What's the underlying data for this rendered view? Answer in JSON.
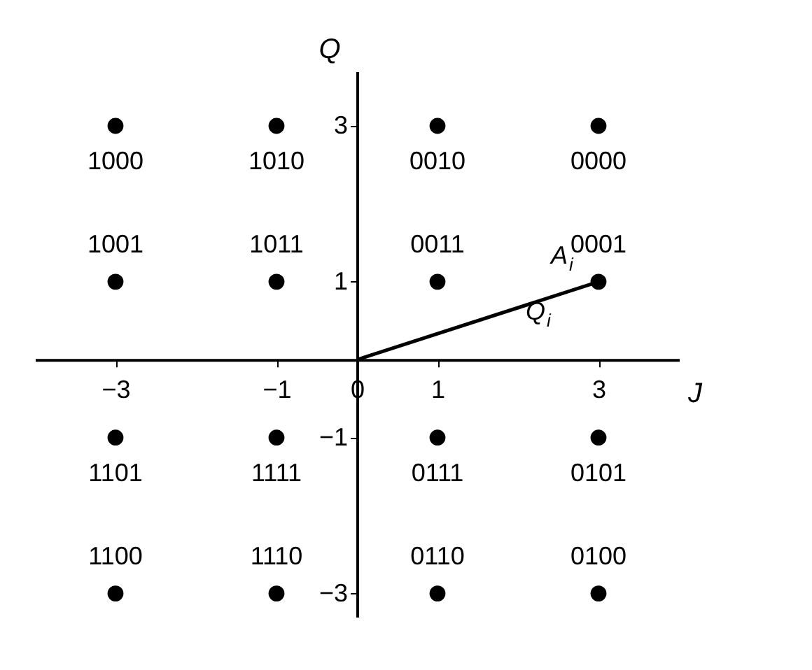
{
  "chart_data": {
    "type": "scatter",
    "xlabel": "J",
    "ylabel": "Q",
    "xlim": [
      -4,
      4
    ],
    "ylim": [
      -3.3,
      3.7
    ],
    "xticks": [
      -3,
      -1,
      0,
      1,
      3
    ],
    "yticks": [
      -3,
      -1,
      1,
      3
    ],
    "grid": false,
    "marker": "circle",
    "series": [
      {
        "color": "#000000",
        "x": [
          -3,
          -1,
          1,
          3,
          -3,
          -1,
          1,
          3,
          -3,
          -1,
          1,
          3,
          -3,
          -1,
          1,
          3
        ],
        "values": [
          3,
          3,
          3,
          3,
          1,
          1,
          1,
          1,
          -1,
          -1,
          -1,
          -1,
          -3,
          -3,
          -3,
          -3
        ]
      },
      {
        "type": "line",
        "color": "#000000",
        "marker": "none",
        "x": [
          0,
          3
        ],
        "values": [
          0,
          1
        ]
      }
    ],
    "annotations": [
      "A$_{i}$",
      "Q$_{i}$",
      {
        "text": "1000",
        "x": -3,
        "y": 3
      },
      {
        "text": "1010",
        "x": -1,
        "y": 3
      },
      {
        "text": "0010",
        "x": 1,
        "y": 3
      },
      {
        "text": "0000",
        "x": 3,
        "y": 3
      },
      {
        "text": "1001",
        "x": -3,
        "y": 1
      },
      {
        "text": "1011",
        "x": -1,
        "y": 1
      },
      {
        "text": "0011",
        "x": 1,
        "y": 1
      },
      {
        "text": "0001",
        "x": 3,
        "y": 1
      },
      {
        "text": "1101",
        "x": -3,
        "y": -1
      },
      {
        "text": "1111",
        "x": -1,
        "y": -1
      },
      {
        "text": "0111",
        "x": 1,
        "y": -1
      },
      {
        "text": "0101",
        "x": 3,
        "y": -1
      },
      {
        "text": "1100",
        "x": -3,
        "y": -3
      },
      {
        "text": "1110",
        "x": -1,
        "y": -3
      },
      {
        "text": "0110",
        "x": 1,
        "y": -3
      },
      {
        "text": "0100",
        "x": 3,
        "y": -3
      }
    ]
  }
}
